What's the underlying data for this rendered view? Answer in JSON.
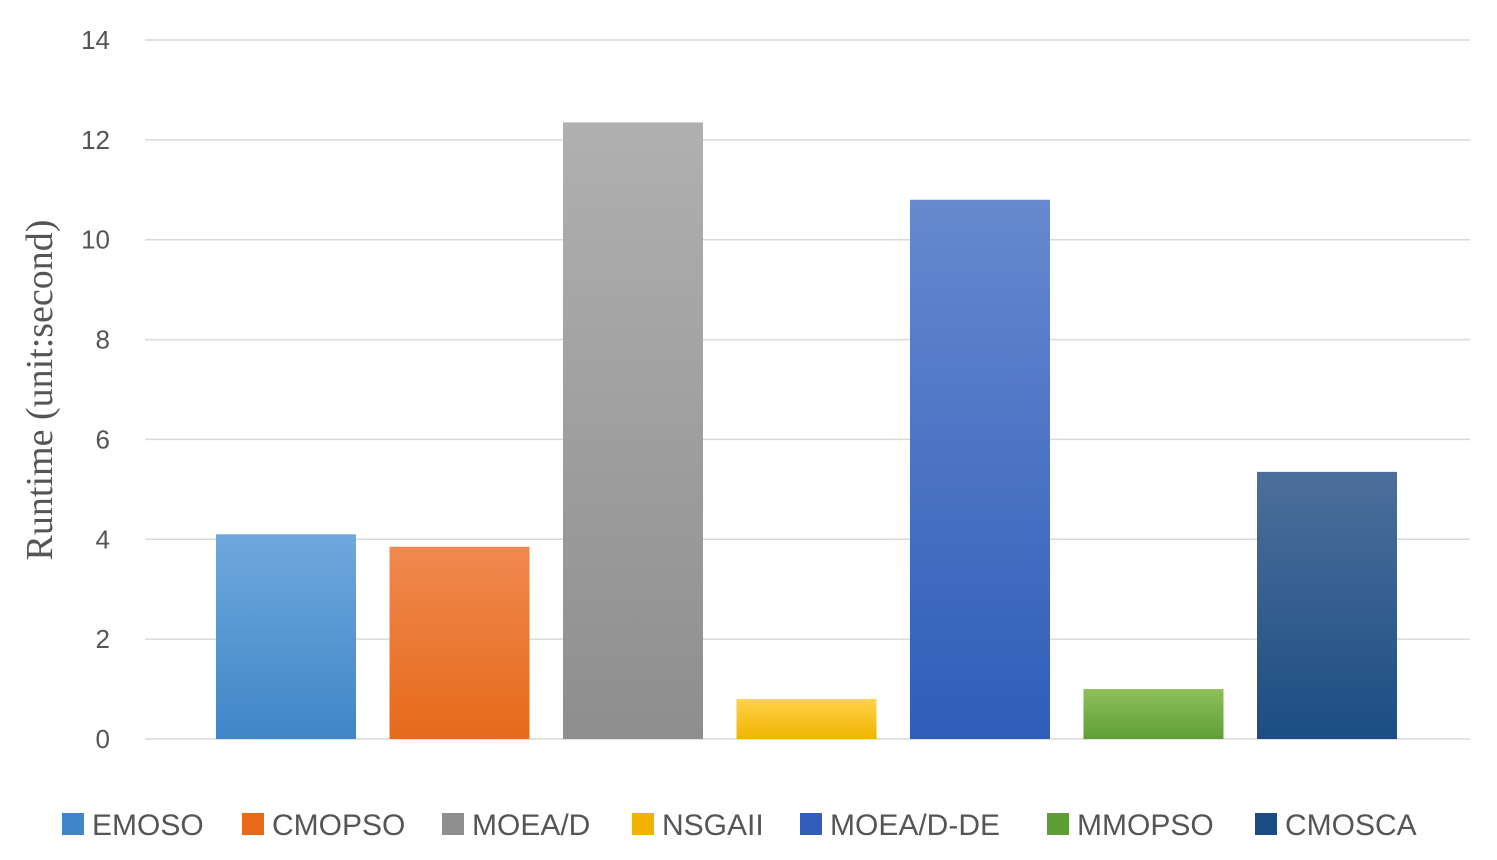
{
  "chart_data": {
    "type": "bar",
    "title": "",
    "xlabel": "",
    "ylabel": "Runtime (unit:second)",
    "ylim": [
      0,
      14
    ],
    "yticks": [
      0,
      2,
      4,
      6,
      8,
      10,
      12,
      14
    ],
    "grid": true,
    "legend_position": "bottom",
    "series": [
      {
        "name": "EMOSO",
        "value": 4.1,
        "color_top": "#6fa8dc",
        "color_bottom": "#3f86c8"
      },
      {
        "name": "CMOPSO",
        "value": 3.85,
        "color_top": "#f0894f",
        "color_bottom": "#e66a1a"
      },
      {
        "name": "MOEA/D",
        "value": 12.35,
        "color_top": "#b0b0b0",
        "color_bottom": "#8e8e8e"
      },
      {
        "name": "NSGAII",
        "value": 0.8,
        "color_top": "#ffd34a",
        "color_bottom": "#f0b400"
      },
      {
        "name": "MOEA/D-DE",
        "value": 10.8,
        "color_top": "#6689cf",
        "color_bottom": "#2f5db9"
      },
      {
        "name": "MMOPSO",
        "value": 1.0,
        "color_top": "#8ec05a",
        "color_bottom": "#5f9e36"
      },
      {
        "name": "CMOSCA",
        "value": 5.35,
        "color_top": "#4d6f9a",
        "color_bottom": "#1b4d84"
      }
    ]
  }
}
